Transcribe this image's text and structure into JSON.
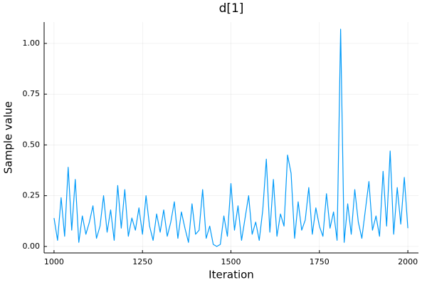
{
  "chart_data": {
    "type": "line",
    "title": "d[1]",
    "x_label": "Iteration",
    "y_label": "Sample value",
    "x": [
      1000,
      1010,
      1020,
      1030,
      1040,
      1050,
      1060,
      1070,
      1080,
      1090,
      1100,
      1110,
      1120,
      1130,
      1140,
      1150,
      1160,
      1170,
      1180,
      1190,
      1200,
      1210,
      1220,
      1230,
      1240,
      1250,
      1260,
      1270,
      1280,
      1290,
      1300,
      1310,
      1320,
      1330,
      1340,
      1350,
      1360,
      1370,
      1380,
      1390,
      1400,
      1410,
      1420,
      1430,
      1440,
      1450,
      1460,
      1470,
      1480,
      1490,
      1500,
      1510,
      1520,
      1530,
      1540,
      1550,
      1560,
      1570,
      1580,
      1590,
      1600,
      1610,
      1620,
      1630,
      1640,
      1650,
      1660,
      1670,
      1680,
      1690,
      1700,
      1710,
      1720,
      1730,
      1740,
      1750,
      1760,
      1770,
      1780,
      1790,
      1800,
      1810,
      1820,
      1830,
      1840,
      1850,
      1860,
      1870,
      1880,
      1890,
      1900,
      1910,
      1920,
      1930,
      1940,
      1950,
      1960,
      1970,
      1980,
      1990,
      2000
    ],
    "series": [
      {
        "color": "#009af9",
        "values": [
          0.14,
          0.03,
          0.24,
          0.05,
          0.39,
          0.08,
          0.33,
          0.02,
          0.15,
          0.06,
          0.12,
          0.2,
          0.04,
          0.1,
          0.25,
          0.07,
          0.18,
          0.03,
          0.3,
          0.09,
          0.28,
          0.05,
          0.14,
          0.08,
          0.19,
          0.06,
          0.25,
          0.1,
          0.03,
          0.16,
          0.07,
          0.18,
          0.05,
          0.12,
          0.22,
          0.04,
          0.17,
          0.09,
          0.02,
          0.21,
          0.06,
          0.08,
          0.28,
          0.04,
          0.1,
          0.01,
          0.0,
          0.01,
          0.15,
          0.05,
          0.31,
          0.08,
          0.2,
          0.03,
          0.14,
          0.25,
          0.06,
          0.12,
          0.03,
          0.18,
          0.43,
          0.07,
          0.33,
          0.05,
          0.16,
          0.1,
          0.45,
          0.36,
          0.04,
          0.22,
          0.08,
          0.13,
          0.29,
          0.06,
          0.19,
          0.1,
          0.05,
          0.26,
          0.09,
          0.17,
          0.03,
          1.07,
          0.02,
          0.21,
          0.06,
          0.28,
          0.12,
          0.04,
          0.18,
          0.32,
          0.08,
          0.15,
          0.05,
          0.37,
          0.1,
          0.47,
          0.06,
          0.29,
          0.11,
          0.34,
          0.09
        ]
      }
    ],
    "xlim": [
      972,
      2030
    ],
    "ylim": [
      -0.032,
      1.105
    ],
    "xticks": [
      1000,
      1250,
      1500,
      1750,
      2000
    ],
    "yticks": [
      {
        "value": 0,
        "label": "0.00"
      },
      {
        "value": 0.25,
        "label": "0.25"
      },
      {
        "value": 0.5,
        "label": "0.50"
      },
      {
        "value": 0.75,
        "label": "0.75"
      },
      {
        "value": 1,
        "label": "1.00"
      }
    ],
    "grid": true
  }
}
